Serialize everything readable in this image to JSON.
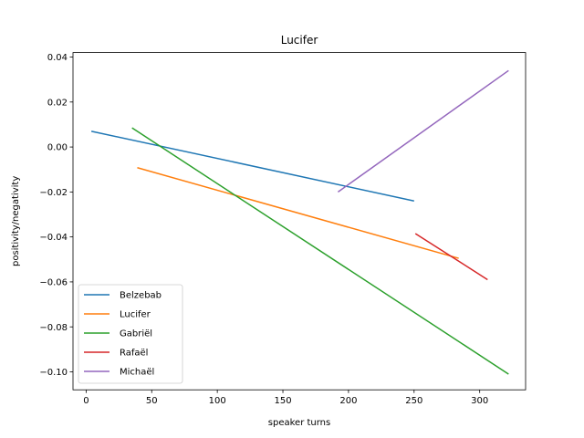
{
  "chart_data": {
    "type": "line",
    "title": "Lucifer",
    "xlabel": "speaker turns",
    "ylabel": "positivity/negativity",
    "xlim": [
      -10,
      335
    ],
    "ylim": [
      -0.108,
      0.042
    ],
    "xticks": [
      0,
      50,
      100,
      150,
      200,
      250,
      300
    ],
    "xtick_labels": [
      "0",
      "50",
      "100",
      "150",
      "200",
      "250",
      "300"
    ],
    "yticks": [
      0.04,
      0.02,
      0.0,
      -0.02,
      -0.04,
      -0.06,
      -0.08,
      -0.1
    ],
    "ytick_labels": [
      "0.04",
      "0.02",
      "0.00",
      "−0.02",
      "−0.04",
      "−0.06",
      "−0.08",
      "−0.10"
    ],
    "grid": false,
    "legend_position": "lower-left",
    "series": [
      {
        "name": "Belzebab",
        "color": "#1f77b4",
        "x": [
          4,
          250
        ],
        "y": [
          0.007,
          -0.024
        ]
      },
      {
        "name": "Lucifer",
        "color": "#ff7f0e",
        "x": [
          39,
          284
        ],
        "y": [
          -0.0092,
          -0.0495
        ]
      },
      {
        "name": "Gabriël",
        "color": "#2ca02c",
        "x": [
          35,
          322
        ],
        "y": [
          0.0085,
          -0.101
        ]
      },
      {
        "name": "Rafaël",
        "color": "#d62728",
        "x": [
          251,
          306
        ],
        "y": [
          -0.0385,
          -0.059
        ]
      },
      {
        "name": "Michaël",
        "color": "#9467bd",
        "x": [
          192,
          322
        ],
        "y": [
          -0.02,
          0.034
        ]
      }
    ]
  }
}
